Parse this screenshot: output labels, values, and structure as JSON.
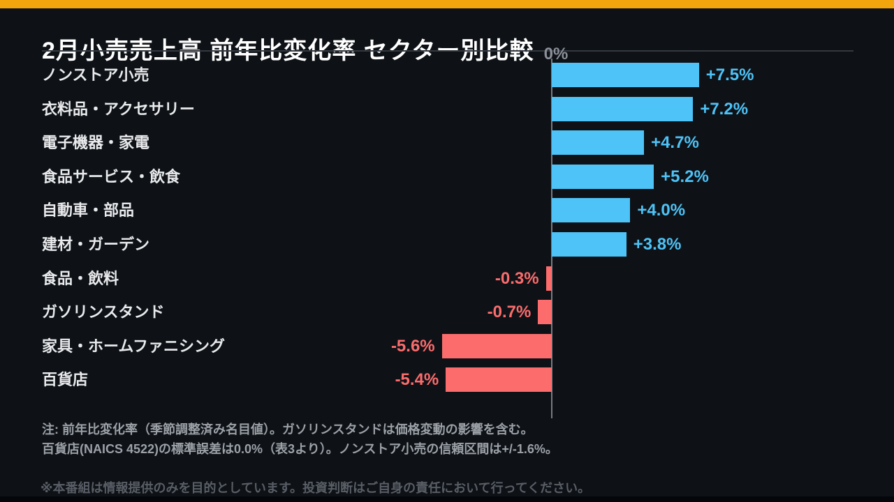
{
  "page": {
    "background_color": "#0E1217",
    "brand_bar_color": "#F2A50C"
  },
  "header": {
    "title": "2月小売売上高 前年比変化率 セクター別比較"
  },
  "chart_data": {
    "type": "bar",
    "orientation": "horizontal",
    "title": "2月小売売上高 前年比変化率 セクター別比較",
    "unit": "%",
    "categories": [
      "ノンストア小売",
      "衣料品・アクセサリー",
      "電子機器・家電",
      "食品サービス・飲食",
      "自動車・部品",
      "建材・ガーデン",
      "食品・飲料",
      "ガソリンスタンド",
      "家具・ホームファニシング",
      "百貨店"
    ],
    "values": [
      7.5,
      7.2,
      4.7,
      5.2,
      4.0,
      3.8,
      -0.3,
      -0.7,
      -5.6,
      -5.4
    ],
    "value_labels": [
      "+7.5%",
      "+7.2%",
      "+4.7%",
      "+5.2%",
      "+4.0%",
      "+3.8%",
      "-0.3%",
      "-0.7%",
      "-5.6%",
      "-5.4%"
    ],
    "zero_label": "0%",
    "xlim": [
      -5.6,
      7.5
    ],
    "grid": false,
    "legend": false,
    "positive_color": "#4EC3F7",
    "negative_color": "#FC6C6C",
    "axis_color": "#777B82",
    "category_label_color": "#E9EAEC",
    "zero_label_color": "#8A8F98"
  },
  "notes": {
    "line1": "注: 前年比変化率（季節調整済み名目値）。ガソリンスタンドは価格変動の影響を含む。",
    "line2": "百貨店(NAICS 4522)の標準誤差は0.0%（表3より）。ノンストア小売の信頼区間は+/-1.6%。"
  },
  "disclaimer": {
    "text": "※本番組は情報提供のみを目的としています。投資判断はご自身の責任において行ってください。"
  }
}
